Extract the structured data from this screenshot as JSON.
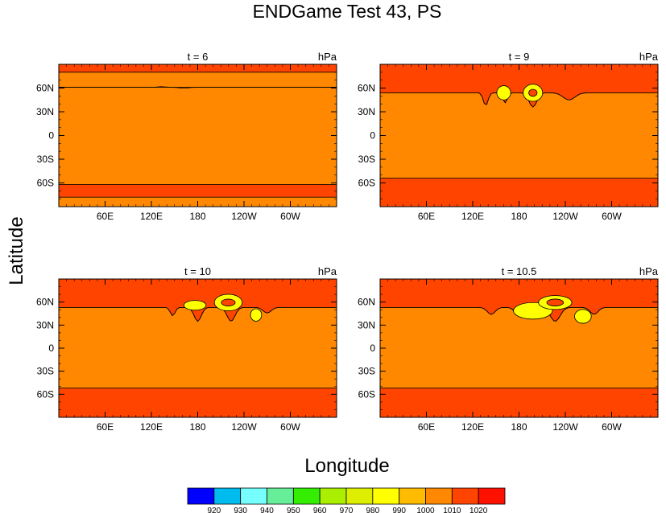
{
  "figure": {
    "title": "ENDGame Test 43, PS",
    "xlabel": "Longitude",
    "ylabel": "Latitude"
  },
  "chart_data": [
    {
      "type": "heatmap",
      "title": "t = 6",
      "units": "hPa",
      "x_ticks": [
        "60E",
        "120E",
        "180",
        "120W",
        "60W"
      ],
      "y_ticks": [
        "60N",
        "30N",
        "0",
        "30S",
        "60S"
      ],
      "x_tick_values": [
        60,
        120,
        180,
        240,
        300
      ],
      "y_tick_values": [
        60,
        30,
        0,
        -30,
        -60
      ],
      "xlim": [
        0,
        360
      ],
      "ylim": [
        -90,
        90
      ],
      "background_level": 1000,
      "bands": [
        {
          "level": 1010,
          "lat_from": 90,
          "lat_to": 80
        },
        {
          "level": 1000,
          "lat_from": 80,
          "lat_to": 61
        },
        {
          "level": 1010,
          "lat_from": -62,
          "lat_to": -78
        }
      ],
      "north_band_edge_lat": 61
    },
    {
      "type": "heatmap",
      "title": "t = 9",
      "units": "hPa",
      "x_ticks": [
        "60E",
        "120E",
        "180",
        "120W",
        "60W"
      ],
      "y_ticks": [
        "60N",
        "30N",
        "0",
        "30S",
        "60S"
      ],
      "x_tick_values": [
        60,
        120,
        180,
        240,
        300
      ],
      "y_tick_values": [
        60,
        30,
        0,
        -30,
        -60
      ],
      "xlim": [
        0,
        360
      ],
      "ylim": [
        -90,
        90
      ],
      "background_level": 1000,
      "bands": [
        {
          "level": 1010,
          "lat_from": 90,
          "lat_to": 54
        },
        {
          "level": 1010,
          "lat_from": -54,
          "lat_to": -90
        }
      ],
      "north_band_edge_lat": 54
    },
    {
      "type": "heatmap",
      "title": "t = 10",
      "units": "hPa",
      "x_ticks": [
        "60E",
        "120E",
        "180",
        "120W",
        "60W"
      ],
      "y_ticks": [
        "60N",
        "30N",
        "0",
        "30S",
        "60S"
      ],
      "x_tick_values": [
        60,
        120,
        180,
        240,
        300
      ],
      "y_tick_values": [
        60,
        30,
        0,
        -30,
        -60
      ],
      "xlim": [
        0,
        360
      ],
      "ylim": [
        -90,
        90
      ],
      "background_level": 1000,
      "bands": [
        {
          "level": 1010,
          "lat_from": 90,
          "lat_to": 53
        },
        {
          "level": 1010,
          "lat_from": -52,
          "lat_to": -90
        }
      ],
      "north_band_edge_lat": 53
    },
    {
      "type": "heatmap",
      "title": "t = 10.5",
      "units": "hPa",
      "x_ticks": [
        "60E",
        "120E",
        "180",
        "120W",
        "60W"
      ],
      "y_ticks": [
        "60N",
        "30N",
        "0",
        "30S",
        "60S"
      ],
      "x_tick_values": [
        60,
        120,
        180,
        240,
        300
      ],
      "y_tick_values": [
        60,
        30,
        0,
        -30,
        -60
      ],
      "xlim": [
        0,
        360
      ],
      "ylim": [
        -90,
        90
      ],
      "background_level": 1000,
      "bands": [
        {
          "level": 1010,
          "lat_from": 90,
          "lat_to": 53
        },
        {
          "level": 1010,
          "lat_from": -52,
          "lat_to": -90
        }
      ],
      "north_band_edge_lat": 53
    }
  ],
  "colorbar": {
    "levels": [
      "920",
      "930",
      "940",
      "950",
      "960",
      "970",
      "980",
      "990",
      "1000",
      "1010",
      "1020"
    ],
    "colors": [
      "#0000ff",
      "#00bbee",
      "#77ffff",
      "#66ee99",
      "#33ee00",
      "#aaee00",
      "#ddee00",
      "#ffff00",
      "#ffbb00",
      "#ff8800",
      "#ff4400",
      "#ff1100"
    ]
  },
  "level_colors": {
    "990": "#ffff00",
    "1000": "#ff8800",
    "1010": "#ff4400"
  }
}
